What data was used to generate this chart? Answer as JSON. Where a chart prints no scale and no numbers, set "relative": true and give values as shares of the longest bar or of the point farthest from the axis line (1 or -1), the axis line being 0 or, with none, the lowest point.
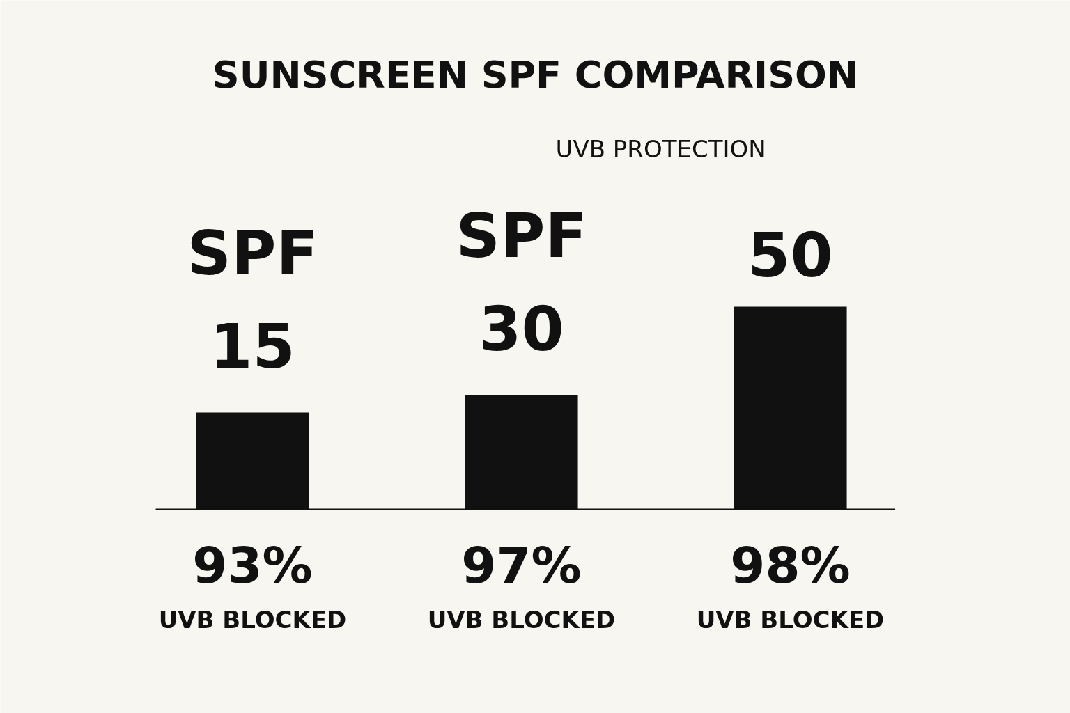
{
  "chart_data": {
    "type": "bar",
    "title": "SUNSCREEN SPF COMPARISON",
    "categories": [
      "SPF 15",
      "SPF 30",
      "50"
    ],
    "values": [
      0.478,
      0.564,
      1
    ],
    "color": "#111111",
    "relative": true,
    "annotations": [
      "UVB PROTECTION",
      "93%",
      "UVB BLOCKED",
      "97%",
      "UVB BLOCKED",
      "98%",
      "UVB BLOCKED"
    ]
  }
}
